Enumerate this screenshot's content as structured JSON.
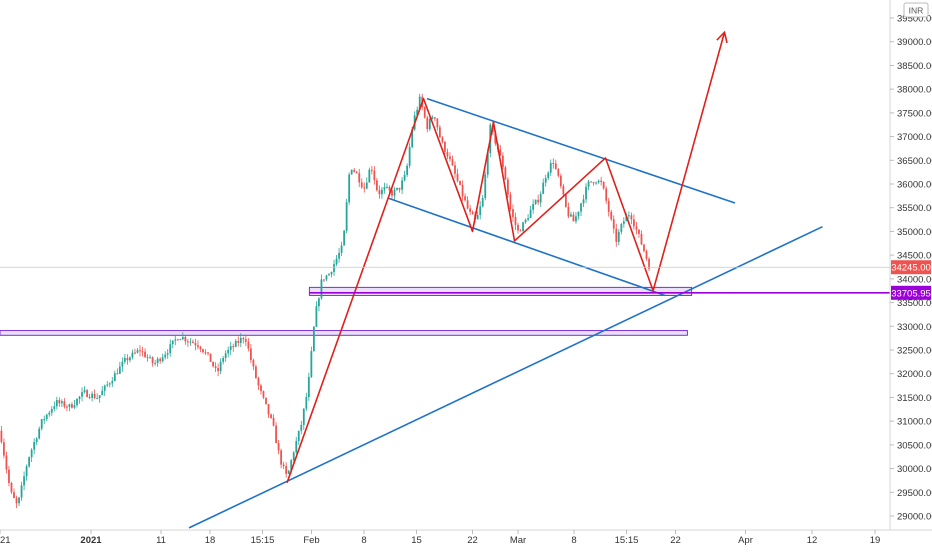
{
  "currency": "INR",
  "colors": {
    "up": "#26a69a",
    "down": "#ef5350",
    "trend": "#1e72c9",
    "pattern": "#e0201b",
    "zone_fill": "#e3d6f7",
    "zone_stroke": "#7b2fd6",
    "level": "#9b00d9",
    "axis_text": "#333333",
    "last_price_bg": "#ef5350"
  },
  "chart_data": {
    "type": "candlestick",
    "title": "",
    "xlabel": "",
    "ylabel": "",
    "ylim": [
      28800,
      39500
    ],
    "y_ticks": [
      29000,
      29500,
      30000,
      30500,
      31000,
      31500,
      32000,
      32500,
      33000,
      33500,
      34000,
      34500,
      35000,
      35500,
      36000,
      36500,
      37000,
      37500,
      38000,
      38500,
      39000,
      39500
    ],
    "x_tick_labels": [
      "21",
      "2021",
      "11",
      "18",
      "15:15",
      "Feb",
      "8",
      "15",
      "22",
      "Mar",
      "8",
      "15:15",
      "22",
      "Apr",
      "12",
      "19"
    ],
    "x_tick_units": [
      0,
      13.0,
      23.0,
      30.0,
      37.5,
      44.5,
      52.0,
      59.5,
      67.5,
      74.0,
      82.0,
      89.5,
      96.5,
      106.5,
      116.0,
      125.0
    ],
    "x_range": [
      0,
      133
    ],
    "price_anchors": [
      [
        0,
        30800
      ],
      [
        1.5,
        29500
      ],
      [
        2.5,
        29200
      ],
      [
        4,
        30200
      ],
      [
        6,
        31000
      ],
      [
        8,
        31400
      ],
      [
        10,
        31300
      ],
      [
        12,
        31600
      ],
      [
        14,
        31500
      ],
      [
        16,
        31900
      ],
      [
        18,
        32300
      ],
      [
        20,
        32500
      ],
      [
        22,
        32200
      ],
      [
        24,
        32500
      ],
      [
        25.5,
        32800
      ],
      [
        27,
        32700
      ],
      [
        28.5,
        32600
      ],
      [
        30,
        32300
      ],
      [
        31,
        32000
      ],
      [
        32,
        32400
      ],
      [
        33.5,
        32600
      ],
      [
        35,
        32800
      ],
      [
        36,
        32200
      ],
      [
        37,
        31700
      ],
      [
        38,
        31300
      ],
      [
        39,
        30900
      ],
      [
        40,
        30200
      ],
      [
        41,
        29800
      ],
      [
        42,
        30400
      ],
      [
        43,
        30900
      ],
      [
        44,
        31700
      ],
      [
        45,
        33200
      ],
      [
        46,
        34000
      ],
      [
        47,
        34100
      ],
      [
        48,
        34400
      ],
      [
        49,
        34700
      ],
      [
        50,
        36400
      ],
      [
        51,
        36200
      ],
      [
        52,
        35900
      ],
      [
        53,
        36400
      ],
      [
        54,
        35800
      ],
      [
        55,
        35900
      ],
      [
        56,
        35800
      ],
      [
        57,
        35900
      ],
      [
        58,
        36200
      ],
      [
        59,
        37300
      ],
      [
        60,
        37800
      ],
      [
        61,
        37200
      ],
      [
        62,
        37500
      ],
      [
        63,
        36900
      ],
      [
        64,
        36600
      ],
      [
        65,
        36200
      ],
      [
        66,
        35800
      ],
      [
        67,
        35400
      ],
      [
        68,
        35200
      ],
      [
        69,
        35700
      ],
      [
        70,
        37200
      ],
      [
        71,
        36800
      ],
      [
        72,
        36300
      ],
      [
        73,
        35400
      ],
      [
        74,
        35000
      ],
      [
        75,
        35200
      ],
      [
        76,
        35500
      ],
      [
        77,
        35700
      ],
      [
        78,
        36200
      ],
      [
        79,
        36500
      ],
      [
        80,
        36000
      ],
      [
        81,
        35400
      ],
      [
        82,
        35200
      ],
      [
        83,
        35600
      ],
      [
        84,
        36000
      ],
      [
        85,
        36100
      ],
      [
        86,
        36000
      ],
      [
        87,
        35400
      ],
      [
        88,
        34800
      ],
      [
        89,
        35200
      ],
      [
        90,
        35400
      ],
      [
        91,
        35000
      ],
      [
        92,
        34600
      ],
      [
        92.8,
        34245
      ]
    ],
    "last_price": {
      "value": 34245,
      "label": "34245.00"
    },
    "support_level": {
      "value": 33705.95,
      "label": "33705.95"
    },
    "zones": [
      {
        "x0": 44.2,
        "x1": 98.8,
        "y0": 33650,
        "y1": 33820
      },
      {
        "x0": 0,
        "x1": 98.2,
        "y0": 32810,
        "y1": 32910
      }
    ],
    "drawings": {
      "channel_upper": {
        "points": [
          [
            61,
            37800
          ],
          [
            105,
            35600
          ]
        ]
      },
      "channel_lower": {
        "points": [
          [
            55.5,
            35700
          ],
          [
            95,
            33650
          ]
        ]
      },
      "ascending_trendline": {
        "points": [
          [
            27,
            28750
          ],
          [
            117.5,
            35100
          ]
        ]
      },
      "pattern_path": {
        "points": [
          [
            41,
            29700
          ],
          [
            60.5,
            37800
          ],
          [
            67.5,
            35000
          ],
          [
            70.5,
            37300
          ],
          [
            73.5,
            34800
          ],
          [
            86.5,
            36550
          ],
          [
            93.3,
            33750
          ],
          [
            103.5,
            39200
          ]
        ]
      },
      "arrow_tip": [
        102.5,
        39400
      ]
    }
  }
}
